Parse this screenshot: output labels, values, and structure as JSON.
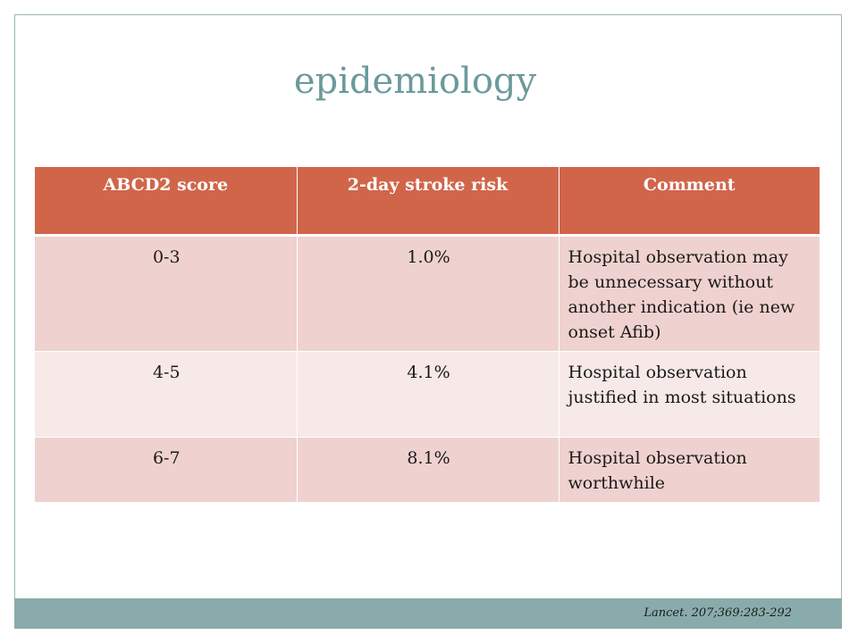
{
  "slide": {
    "title": "epidemiology"
  },
  "table": {
    "headers": [
      "ABCD2 score",
      "2-day stroke risk",
      "Comment"
    ],
    "rows": [
      [
        "0-3",
        "1.0%",
        "Hospital observation may be unnecessary without another indication (ie new onset Afib)"
      ],
      [
        "4-5",
        "4.1%",
        "Hospital observation justified in most situations"
      ],
      [
        "6-7",
        "8.1%",
        "Hospital observation worthwhile"
      ]
    ]
  },
  "footer": {
    "citation": "Lancet. 207;369:283-292"
  },
  "colors": {
    "title": "#6c9a9c",
    "header_bg": "#d1654a",
    "row_odd_bg": "#efd2cf",
    "row_even_bg": "#f7e9e8",
    "footer_bar": "#8aabab",
    "frame_border": "#9fb4b4"
  }
}
